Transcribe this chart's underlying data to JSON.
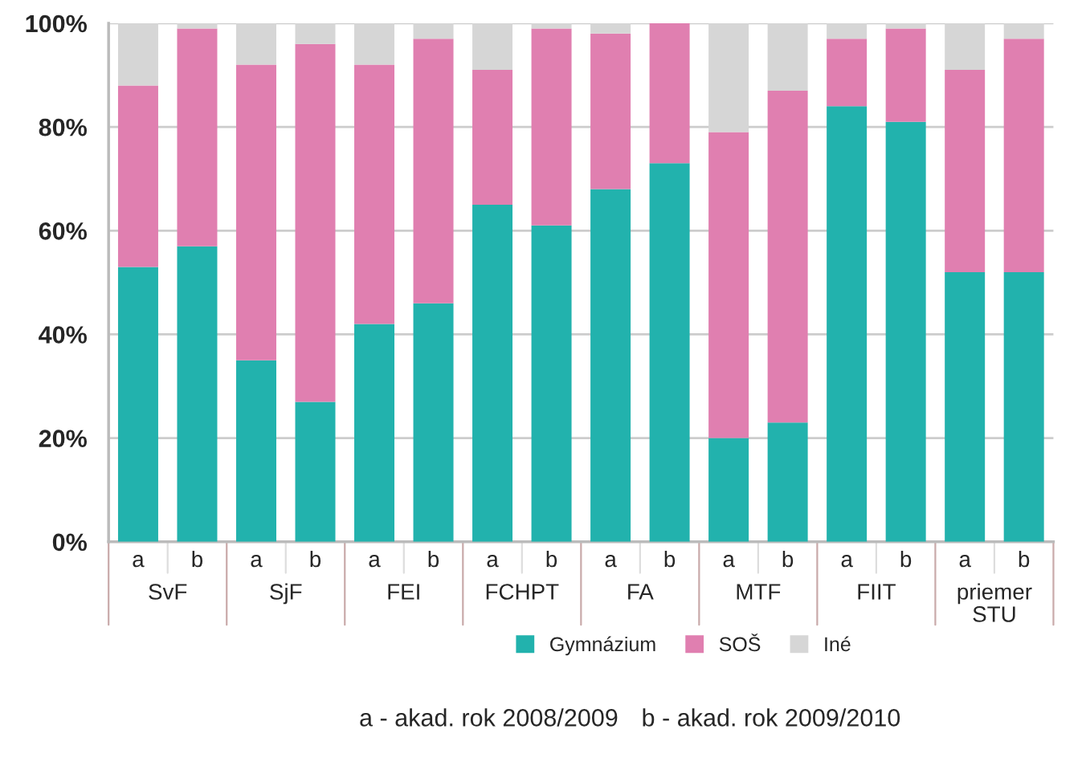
{
  "chart_data": {
    "type": "bar",
    "stacked": true,
    "categories": [
      "a",
      "b",
      "a",
      "b",
      "a",
      "b",
      "a",
      "b",
      "a",
      "b",
      "a",
      "b",
      "a",
      "b",
      "a",
      "b"
    ],
    "series": [
      {
        "name": "Gymnázium",
        "color": "#22b2ad",
        "values": [
          53,
          57,
          35,
          27,
          42,
          46,
          65,
          61,
          68,
          73,
          20,
          23,
          84,
          81,
          52,
          52
        ]
      },
      {
        "name": "SOŠ",
        "color": "#e07fb0",
        "values": [
          35,
          42,
          57,
          69,
          50,
          51,
          26,
          38,
          30,
          27,
          59,
          64,
          13,
          18,
          39,
          45
        ]
      },
      {
        "name": "Iné",
        "color": "#d6d6d6",
        "values": [
          12,
          1,
          8,
          4,
          8,
          3,
          9,
          1,
          2,
          0,
          21,
          13,
          3,
          1,
          9,
          3
        ]
      }
    ],
    "ylim": [
      0,
      100
    ],
    "yticks": [
      {
        "value": 0,
        "label": "0%"
      },
      {
        "value": 20,
        "label": "20%"
      },
      {
        "value": 40,
        "label": "40%"
      },
      {
        "value": 60,
        "label": "60%"
      },
      {
        "value": 80,
        "label": "80%"
      },
      {
        "value": 100,
        "label": "100%"
      }
    ],
    "grid": "y",
    "legend": "bottom",
    "annotations": [
      "SvF",
      "SjF",
      "FEI",
      "FCHPT",
      "FA",
      "MTF",
      "FIIT",
      "priemer\nSTU",
      "a - akad. rok 2008/2009",
      "b - akad. rok 2009/2010"
    ]
  }
}
